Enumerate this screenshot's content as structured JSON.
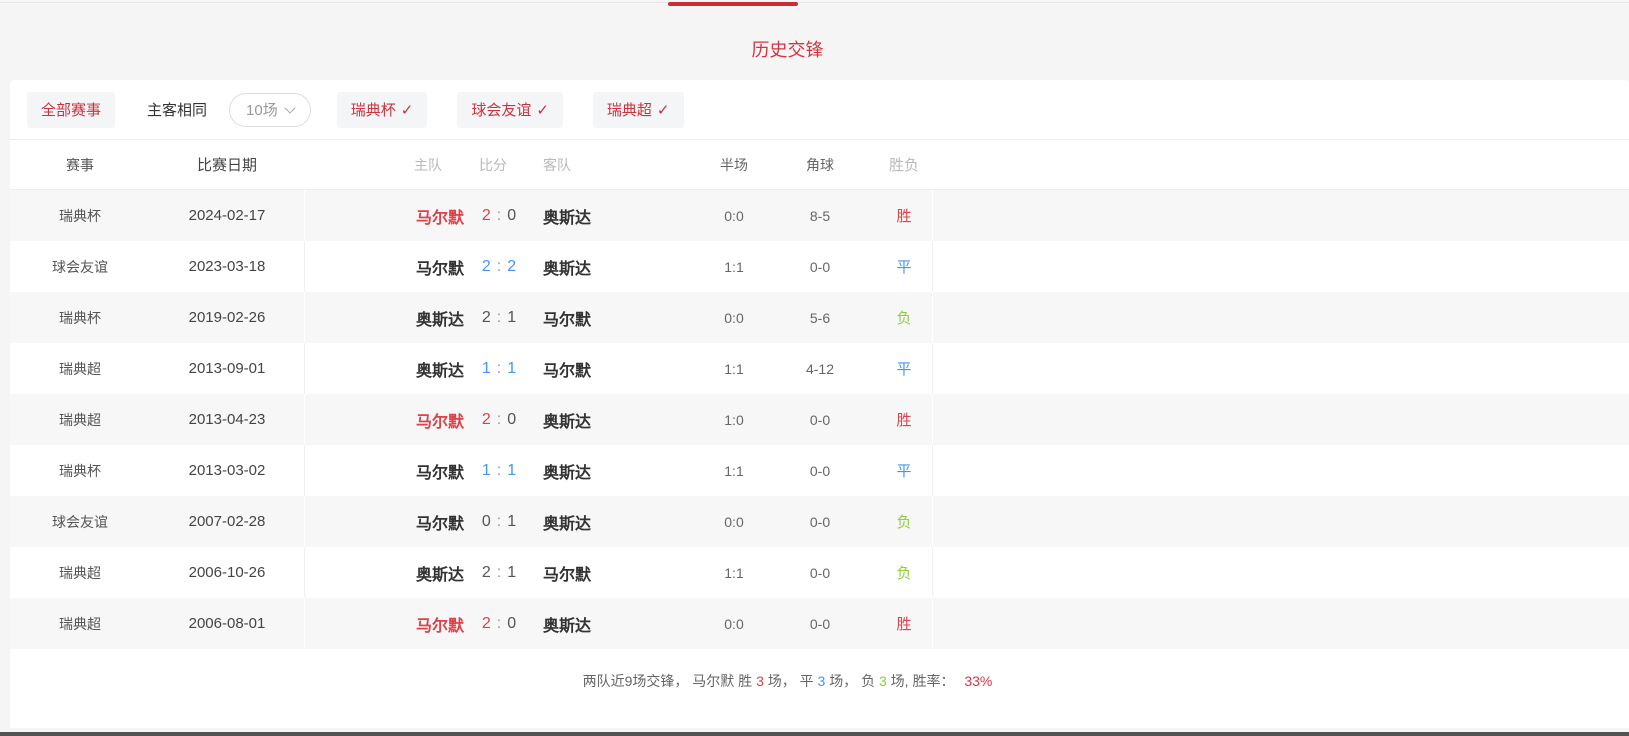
{
  "page": {
    "title": "历史交锋"
  },
  "colors": {
    "accent_red": "#c9333e",
    "win_red": "#de4148",
    "draw_blue": "#4496f0",
    "loss_green": "#8ecf3c"
  },
  "filters": {
    "all_events_label": "全部赛事",
    "same_venue_label": "主客相同",
    "count_dropdown_value": "10场",
    "check_glyph": "✓",
    "competitions": [
      {
        "label": "瑞典杯"
      },
      {
        "label": "球会友谊"
      },
      {
        "label": "瑞典超"
      }
    ]
  },
  "table": {
    "columns": {
      "competition": "赛事",
      "date": "比赛日期",
      "home": "主队",
      "score": "比分",
      "away": "客队",
      "half": "半场",
      "corners": "角球",
      "result": "胜负"
    },
    "rows": [
      {
        "competition": "瑞典杯",
        "date": "2024-02-17",
        "home": "马尔默",
        "home_score": "2",
        "away_score": "0",
        "away": "奥斯达",
        "half": "0:0",
        "corners": "8-5",
        "result": "胜",
        "outcome": "win",
        "home_highlight": true
      },
      {
        "competition": "球会友谊",
        "date": "2023-03-18",
        "home": "马尔默",
        "home_score": "2",
        "away_score": "2",
        "away": "奥斯达",
        "half": "1:1",
        "corners": "0-0",
        "result": "平",
        "outcome": "draw",
        "home_highlight": false
      },
      {
        "competition": "瑞典杯",
        "date": "2019-02-26",
        "home": "奥斯达",
        "home_score": "2",
        "away_score": "1",
        "away": "马尔默",
        "half": "0:0",
        "corners": "5-6",
        "result": "负",
        "outcome": "loss",
        "home_highlight": false
      },
      {
        "competition": "瑞典超",
        "date": "2013-09-01",
        "home": "奥斯达",
        "home_score": "1",
        "away_score": "1",
        "away": "马尔默",
        "half": "1:1",
        "corners": "4-12",
        "result": "平",
        "outcome": "draw",
        "home_highlight": false
      },
      {
        "competition": "瑞典超",
        "date": "2013-04-23",
        "home": "马尔默",
        "home_score": "2",
        "away_score": "0",
        "away": "奥斯达",
        "half": "1:0",
        "corners": "0-0",
        "result": "胜",
        "outcome": "win",
        "home_highlight": true
      },
      {
        "competition": "瑞典杯",
        "date": "2013-03-02",
        "home": "马尔默",
        "home_score": "1",
        "away_score": "1",
        "away": "奥斯达",
        "half": "1:1",
        "corners": "0-0",
        "result": "平",
        "outcome": "draw",
        "home_highlight": false
      },
      {
        "competition": "球会友谊",
        "date": "2007-02-28",
        "home": "马尔默",
        "home_score": "0",
        "away_score": "1",
        "away": "奥斯达",
        "half": "0:0",
        "corners": "0-0",
        "result": "负",
        "outcome": "loss",
        "home_highlight": false
      },
      {
        "competition": "瑞典超",
        "date": "2006-10-26",
        "home": "奥斯达",
        "home_score": "2",
        "away_score": "1",
        "away": "马尔默",
        "half": "1:1",
        "corners": "0-0",
        "result": "负",
        "outcome": "loss",
        "home_highlight": false
      },
      {
        "competition": "瑞典超",
        "date": "2006-08-01",
        "home": "马尔默",
        "home_score": "2",
        "away_score": "0",
        "away": "奥斯达",
        "half": "0:0",
        "corners": "0-0",
        "result": "胜",
        "outcome": "win",
        "home_highlight": true
      }
    ]
  },
  "summary": {
    "prefix": "两队近9场交锋， 马尔默 胜 ",
    "win_count": "3",
    "mid1": " 场， 平 ",
    "draw_count": "3",
    "mid2": " 场， 负 ",
    "loss_count": "3",
    "mid3": " 场, 胜率： ",
    "win_rate": "33%"
  }
}
